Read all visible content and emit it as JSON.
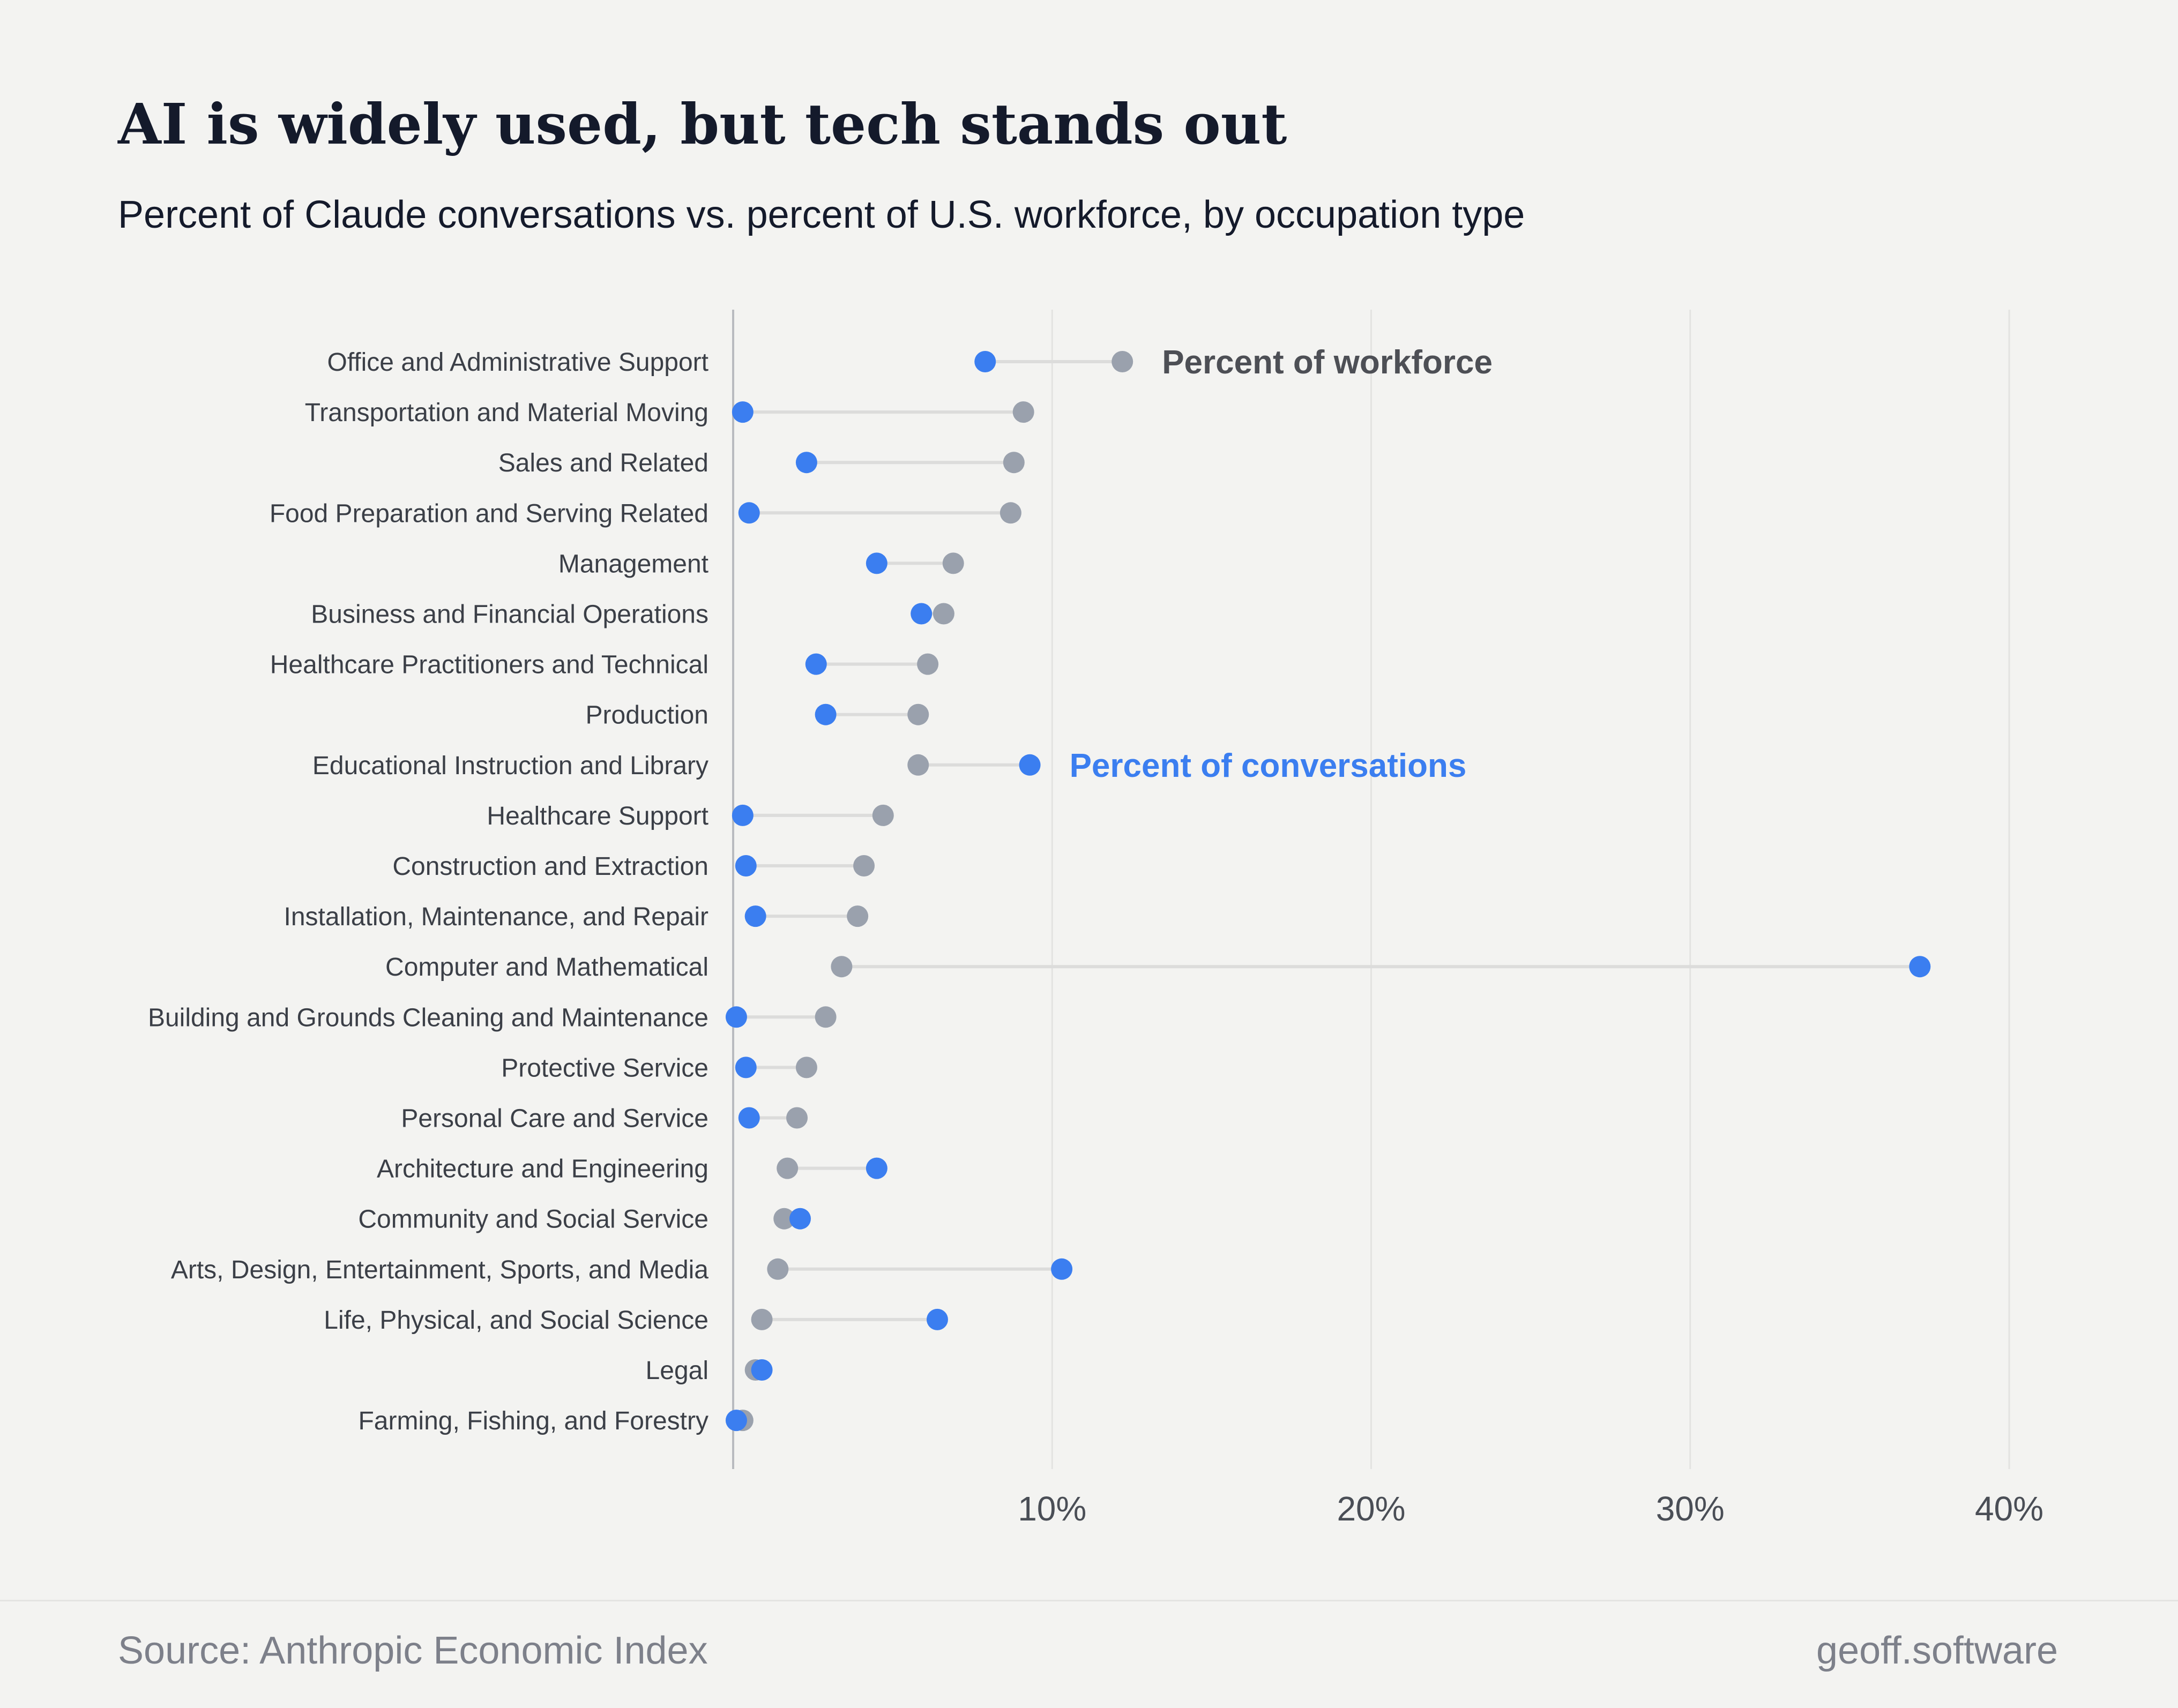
{
  "title": "AI is widely used, but tech stands out",
  "subtitle": "Percent of Claude conversations vs. percent of U.S. workforce, by occupation type",
  "footer": {
    "source": "Source: Anthropic Economic Index",
    "brand": "geoff.software"
  },
  "colors": {
    "workforce": "#9aa1ad",
    "conversations": "#3b7ef0",
    "connector": "#dcdcdb",
    "title": "#141a2b"
  },
  "chart_data": {
    "type": "dumbbell",
    "title": "AI is widely used, but tech stands out",
    "subtitle": "Percent of Claude conversations vs. percent of U.S. workforce, by occupation type",
    "xlabel": "",
    "ylabel": "",
    "xlim": [
      0,
      40
    ],
    "x_ticks": [
      10,
      20,
      30,
      40
    ],
    "x_tick_labels": [
      "10%",
      "20%",
      "30%",
      "40%"
    ],
    "grid": true,
    "series_names": {
      "workforce": "Percent of workforce",
      "conversations": "Percent of conversations"
    },
    "categories": [
      "Office and Administrative Support",
      "Transportation and Material Moving",
      "Sales and Related",
      "Food Preparation and Serving Related",
      "Management",
      "Business and Financial Operations",
      "Healthcare Practitioners and Technical",
      "Production",
      "Educational Instruction and Library",
      "Healthcare Support",
      "Construction and Extraction",
      "Installation, Maintenance, and Repair",
      "Computer and Mathematical",
      "Building and Grounds Cleaning and Maintenance",
      "Protective Service",
      "Personal Care and Service",
      "Architecture and Engineering",
      "Community and Social Service",
      "Arts, Design, Entertainment, Sports, and Media",
      "Life, Physical, and Social Science",
      "Legal",
      "Farming, Fishing, and Forestry"
    ],
    "workforce": [
      12.2,
      9.1,
      8.8,
      8.7,
      6.9,
      6.6,
      6.1,
      5.8,
      5.8,
      4.7,
      4.1,
      3.9,
      3.4,
      2.9,
      2.3,
      2.0,
      1.7,
      1.6,
      1.4,
      0.9,
      0.7,
      0.3
    ],
    "conversations": [
      7.9,
      0.3,
      2.3,
      0.5,
      4.5,
      5.9,
      2.6,
      2.9,
      9.3,
      0.3,
      0.4,
      0.7,
      37.2,
      0.1,
      0.4,
      0.5,
      4.5,
      2.1,
      10.3,
      6.4,
      0.9,
      0.1
    ],
    "annotations": [
      {
        "text": "Percent of workforce",
        "series": "workforce",
        "category": "Office and Administrative Support"
      },
      {
        "text": "Percent of conversations",
        "series": "conversations",
        "category": "Educational Instruction and Library"
      }
    ]
  }
}
